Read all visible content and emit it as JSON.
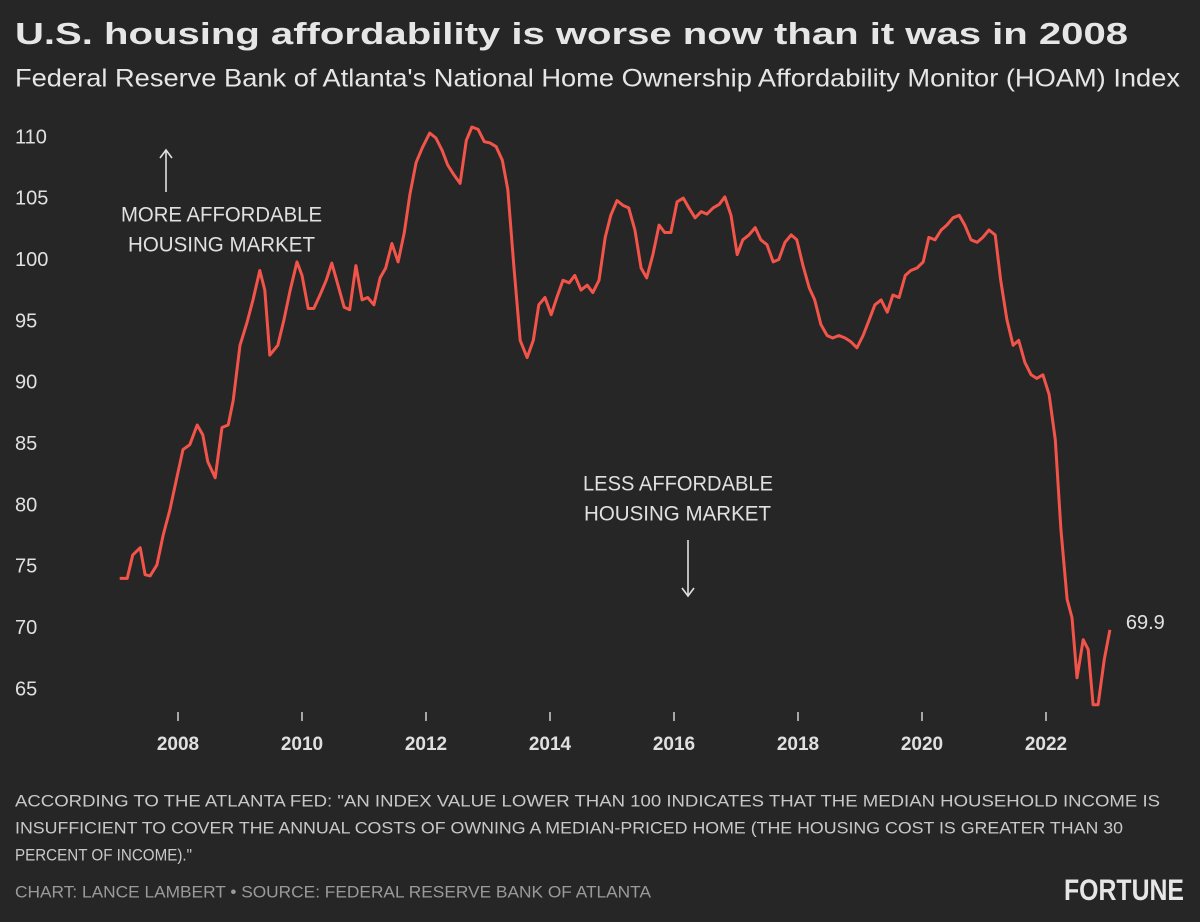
{
  "chart_data": {
    "type": "line",
    "title": "U.S. housing affordability is worse now than it was in 2008",
    "subtitle": "Federal Reserve Bank of Atlanta's National Home Ownership Affordability Monitor (HOAM) Index",
    "x": [
      2007.06,
      2007.18,
      2007.27,
      2007.39,
      2007.47,
      2007.55,
      2007.66,
      2007.76,
      2007.87,
      2007.98,
      2008.08,
      2008.19,
      2008.31,
      2008.4,
      2008.48,
      2008.6,
      2008.71,
      2008.81,
      2008.89,
      2009.0,
      2009.11,
      2009.21,
      2009.32,
      2009.4,
      2009.48,
      2009.61,
      2009.71,
      2009.81,
      2009.92,
      2010.0,
      2010.1,
      2010.19,
      2010.29,
      2010.39,
      2010.48,
      2010.58,
      2010.68,
      2010.77,
      2010.87,
      2010.97,
      2011.06,
      2011.16,
      2011.26,
      2011.35,
      2011.45,
      2011.55,
      2011.65,
      2011.74,
      2011.84,
      2011.94,
      2012.06,
      2012.16,
      2012.26,
      2012.35,
      2012.45,
      2012.55,
      2012.65,
      2012.74,
      2012.84,
      2012.94,
      2013.03,
      2013.13,
      2013.23,
      2013.32,
      2013.42,
      2013.52,
      2013.63,
      2013.73,
      2013.82,
      2013.92,
      2014.02,
      2014.11,
      2014.21,
      2014.31,
      2014.4,
      2014.5,
      2014.6,
      2014.69,
      2014.79,
      2014.89,
      2014.98,
      2015.08,
      2015.18,
      2015.27,
      2015.37,
      2015.47,
      2015.56,
      2015.66,
      2015.76,
      2015.85,
      2015.95,
      2016.05,
      2016.15,
      2016.24,
      2016.34,
      2016.44,
      2016.53,
      2016.63,
      2016.73,
      2016.82,
      2016.92,
      2017.02,
      2017.11,
      2017.21,
      2017.31,
      2017.4,
      2017.5,
      2017.6,
      2017.69,
      2017.79,
      2017.89,
      2017.98,
      2018.08,
      2018.18,
      2018.27,
      2018.37,
      2018.47,
      2018.56,
      2018.66,
      2018.76,
      2018.85,
      2018.95,
      2019.05,
      2019.15,
      2019.24,
      2019.34,
      2019.44,
      2019.53,
      2019.63,
      2019.73,
      2019.82,
      2019.92,
      2020.02,
      2020.11,
      2020.21,
      2020.31,
      2020.4,
      2020.5,
      2020.6,
      2020.69,
      2020.79,
      2020.89,
      2020.98,
      2021.08,
      2021.18,
      2021.27,
      2021.37,
      2021.47,
      2021.56,
      2021.66,
      2021.76,
      2021.85,
      2021.95,
      2022.05,
      2022.15,
      2022.24,
      2022.34,
      2022.42,
      2022.5,
      2022.6,
      2022.68,
      2022.76,
      2022.84,
      2022.94,
      2023.03
    ],
    "series": [
      {
        "color": "#f2544a",
        "values": [
          74.1,
          74.1,
          76.0,
          76.6,
          74.4,
          74.3,
          75.2,
          77.6,
          79.7,
          82.3,
          84.6,
          85.0,
          86.6,
          85.8,
          83.6,
          82.3,
          86.4,
          86.6,
          88.6,
          93.1,
          94.9,
          96.8,
          99.2,
          97.6,
          92.3,
          93.1,
          95.2,
          97.6,
          99.9,
          98.8,
          96.1,
          96.1,
          97.2,
          98.4,
          99.8,
          98.0,
          96.2,
          96.0,
          99.6,
          96.8,
          97.0,
          96.4,
          98.6,
          99.4,
          101.4,
          99.9,
          102.3,
          105.4,
          108.0,
          109.2,
          110.4,
          110.0,
          109.0,
          107.8,
          107.0,
          106.3,
          109.8,
          110.9,
          110.7,
          109.7,
          109.6,
          109.3,
          108.2,
          105.8,
          99.4,
          93.5,
          92.1,
          93.5,
          96.4,
          97.0,
          95.6,
          97.0,
          98.4,
          98.2,
          98.8,
          97.6,
          98.0,
          97.4,
          98.4,
          101.9,
          103.7,
          104.9,
          104.5,
          104.3,
          102.5,
          99.4,
          98.6,
          100.5,
          102.9,
          102.3,
          102.3,
          104.8,
          105.1,
          104.3,
          103.5,
          104.0,
          103.8,
          104.3,
          104.6,
          105.2,
          103.7,
          100.5,
          101.7,
          102.1,
          102.7,
          101.7,
          101.3,
          99.9,
          100.1,
          101.5,
          102.1,
          101.7,
          99.6,
          97.8,
          96.8,
          94.8,
          93.9,
          93.7,
          93.9,
          93.7,
          93.4,
          92.9,
          93.9,
          95.2,
          96.4,
          96.8,
          95.8,
          97.2,
          97.0,
          98.8,
          99.2,
          99.4,
          99.9,
          101.9,
          101.7,
          102.5,
          102.9,
          103.5,
          103.7,
          102.9,
          101.7,
          101.5,
          101.9,
          102.5,
          102.1,
          98.4,
          95.2,
          93.1,
          93.5,
          91.7,
          90.7,
          90.4,
          90.7,
          89.1,
          85.4,
          78.1,
          72.4,
          70.9,
          66.0,
          69.1,
          68.3,
          63.8,
          63.8,
          67.5,
          69.9
        ]
      }
    ],
    "xlim": [
      2006.75,
      2023.5
    ],
    "xticks": [
      2008,
      2010,
      2012,
      2014,
      2016,
      2018,
      2020,
      2022
    ],
    "ylim": [
      63,
      112
    ],
    "yticks": [
      65,
      70,
      75,
      80,
      85,
      90,
      95,
      100,
      105,
      110
    ],
    "grid": false,
    "annotations": [
      {
        "lines": [
          "MORE AFFORDABLE",
          "HOUSING MARKET"
        ]
      },
      {
        "lines": [
          "LESS AFFORDABLE",
          "HOUSING MARKET"
        ]
      }
    ],
    "footnote": [
      "ACCORDING TO THE ATLANTA FED: \"AN INDEX VALUE LOWER THAN 100 INDICATES THAT THE MEDIAN HOUSEHOLD INCOME IS",
      "INSUFFICIENT TO COVER THE ANNUAL COSTS OF OWNING A MEDIAN-PRICED HOME (THE HOUSING COST IS GREATER THAN 30",
      "PERCENT OF INCOME).\""
    ],
    "credit": "CHART: LANCE LAMBERT • SOURCE: FEDERAL RESERVE BANK OF ATLANTA",
    "brand": "FORTUNE"
  }
}
